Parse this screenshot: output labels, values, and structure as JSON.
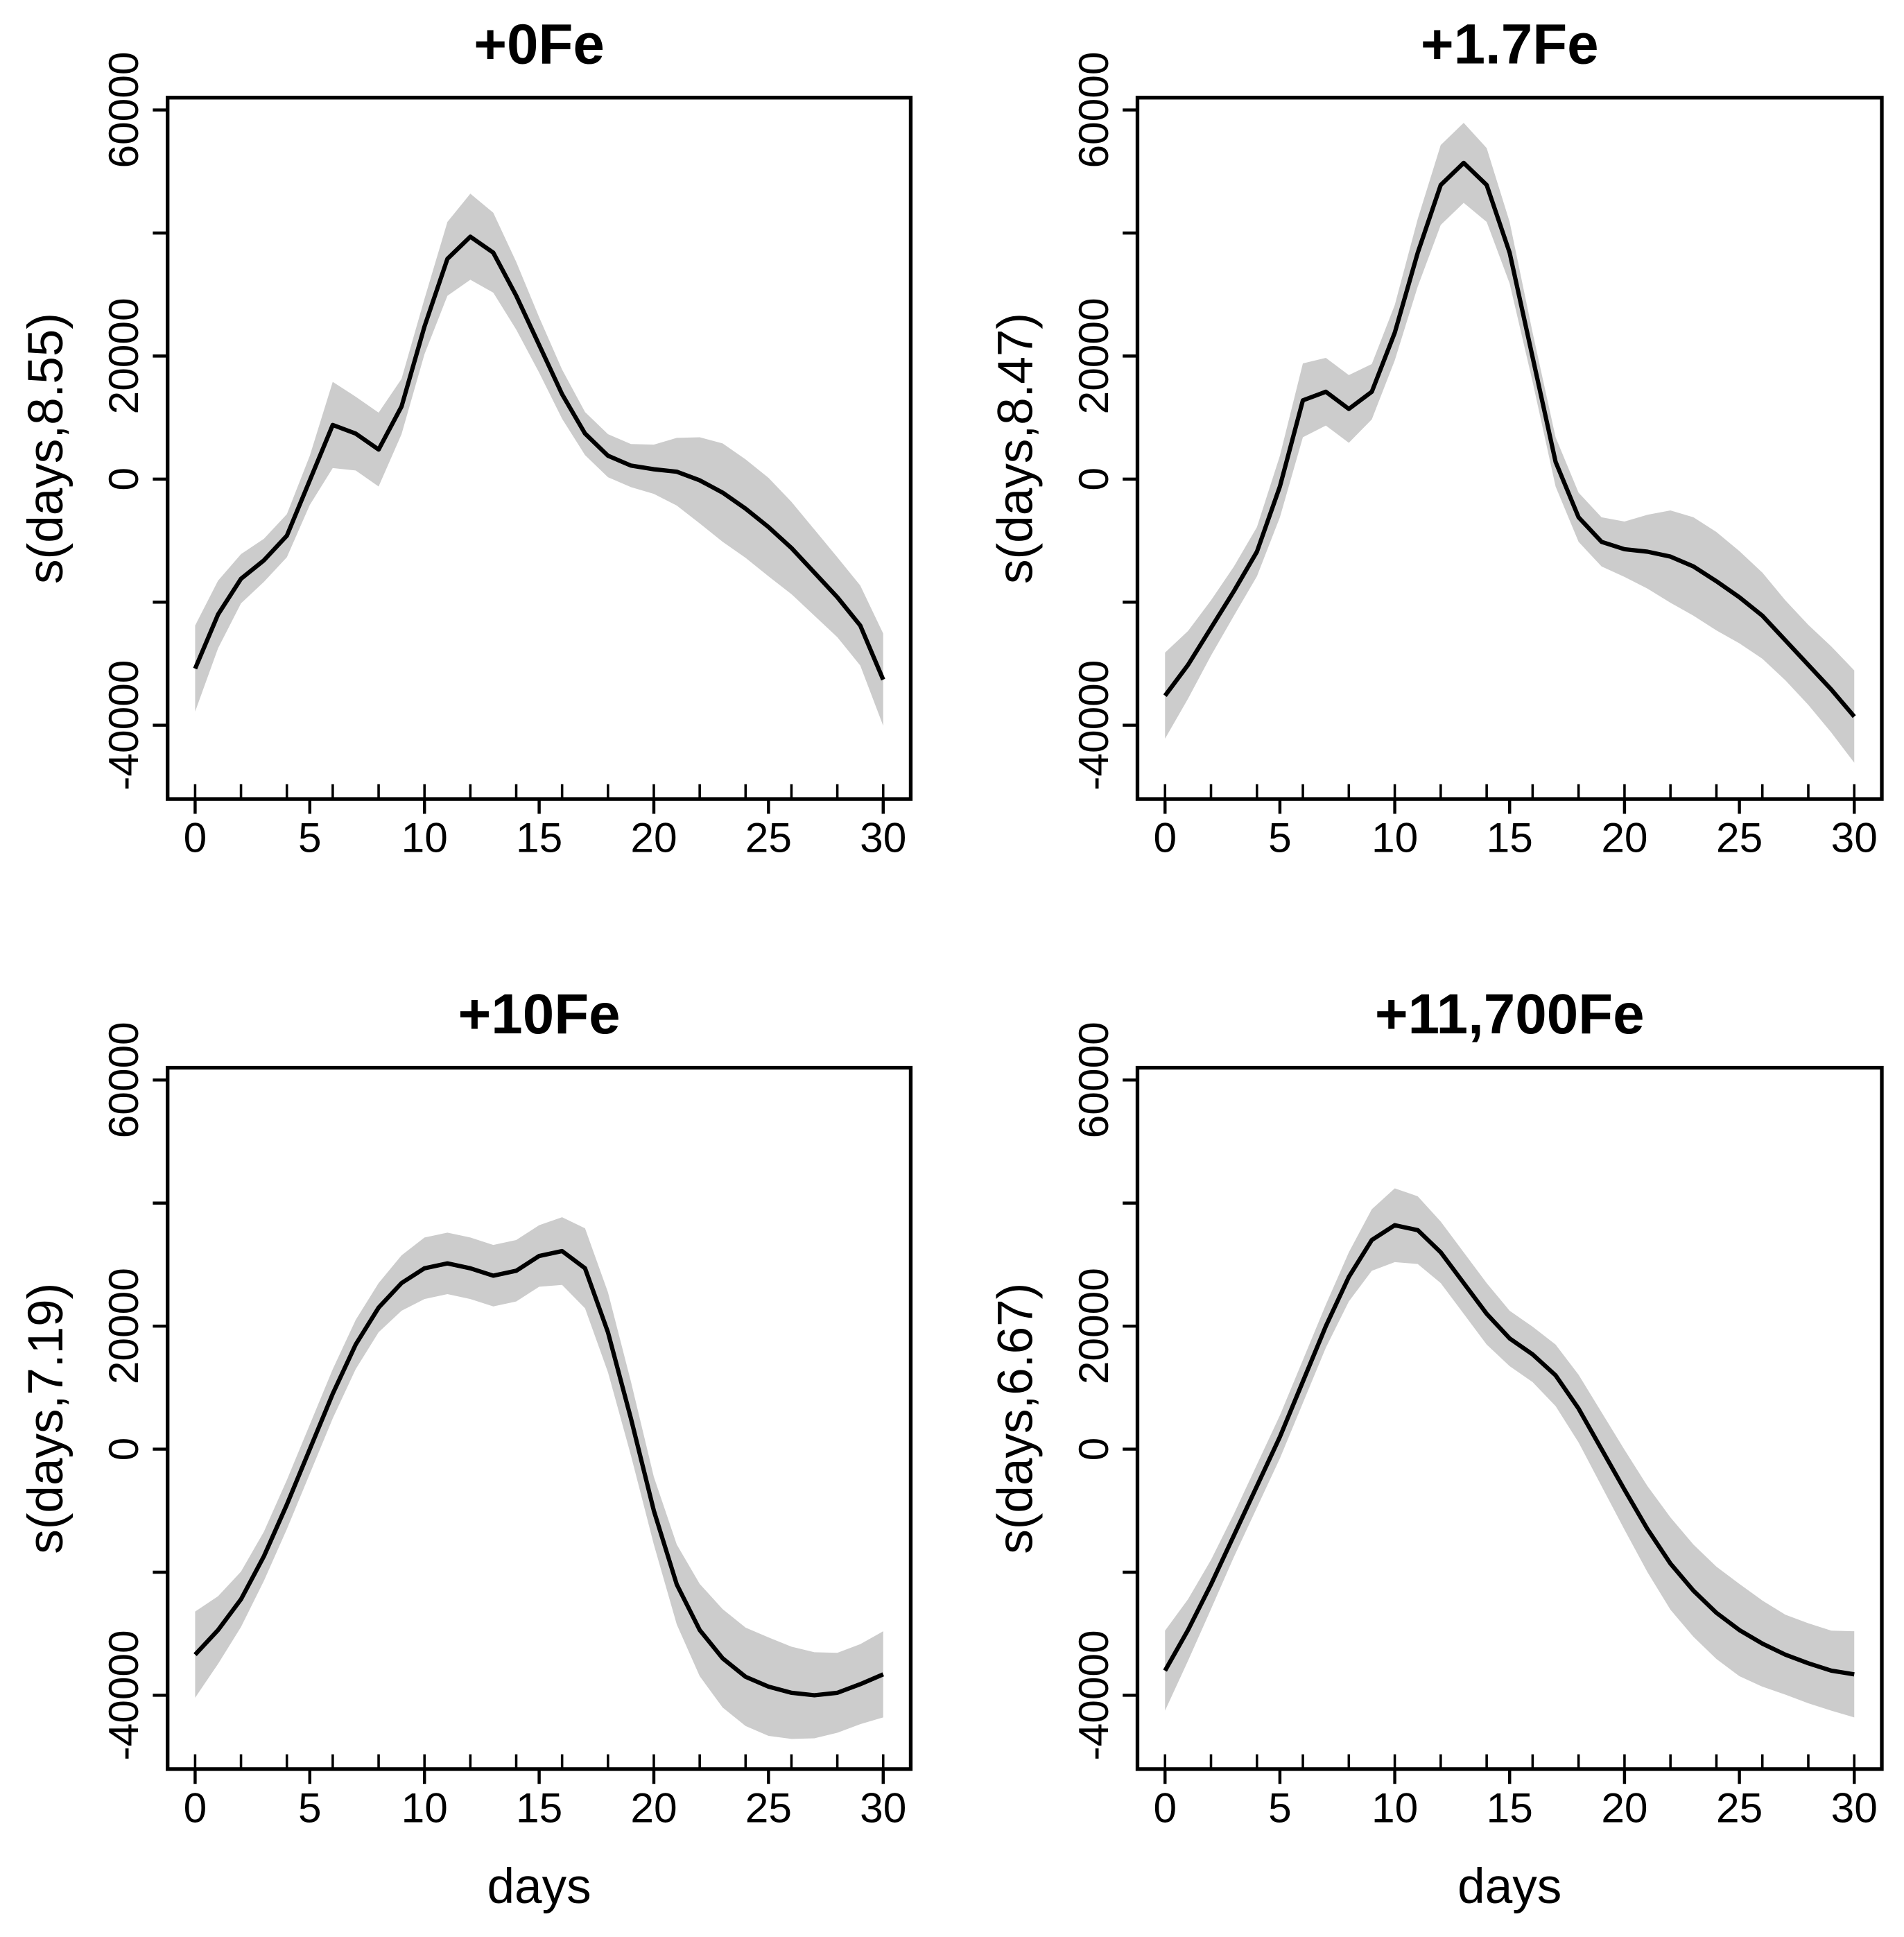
{
  "chart_data": [
    {
      "type": "line",
      "title": "+0Fe",
      "ylabel": "s(days,8.55)",
      "x": [
        0,
        1,
        2,
        3,
        4,
        5,
        6,
        7,
        8,
        9,
        10,
        11,
        12,
        13,
        14,
        15,
        16,
        17,
        18,
        19,
        20,
        21,
        22,
        23,
        24,
        25,
        26,
        27,
        28,
        29,
        30
      ],
      "values": [
        -30800,
        -22000,
        -16200,
        -13200,
        -9200,
        -200,
        8800,
        7400,
        4800,
        11800,
        24800,
        35800,
        39400,
        36800,
        29800,
        21800,
        13800,
        7400,
        3800,
        2200,
        1600,
        1200,
        -200,
        -2200,
        -4800,
        -7800,
        -11200,
        -15200,
        -19200,
        -23800,
        -32600
      ],
      "lower": [
        -37800,
        -27500,
        -20200,
        -16700,
        -12700,
        -4200,
        1800,
        1400,
        -1200,
        7300,
        20300,
        29800,
        32400,
        30300,
        24300,
        17300,
        9800,
        3900,
        300,
        -1300,
        -2400,
        -4300,
        -7200,
        -10200,
        -12800,
        -15800,
        -18700,
        -22200,
        -25700,
        -30300,
        -40100
      ],
      "upper": [
        -23800,
        -16500,
        -12200,
        -9700,
        -5700,
        3800,
        15800,
        13400,
        10800,
        16300,
        29300,
        41800,
        46400,
        43300,
        35300,
        26300,
        17800,
        10900,
        7300,
        5700,
        5600,
        6700,
        6800,
        5800,
        3200,
        200,
        -3700,
        -8200,
        -12700,
        -17300,
        -25100
      ],
      "rug": [
        0,
        2,
        4,
        6,
        8,
        10,
        12,
        14,
        16,
        18,
        20,
        22,
        24,
        26,
        28,
        30
      ],
      "color": "#000000",
      "band_color": "#cccccc",
      "xlim": [
        -1.2,
        31.2
      ],
      "ylim": [
        -52000,
        62000
      ],
      "xticks": [
        0,
        5,
        10,
        15,
        20,
        25,
        30
      ],
      "yticks": [
        -40000,
        {
          "value": -20000,
          "label": null
        },
        0,
        20000,
        {
          "value": 40000,
          "label": null
        },
        60000
      ]
    },
    {
      "type": "line",
      "title": "+1.7Fe",
      "ylabel": "s(days,8.47)",
      "x": [
        0,
        1,
        2,
        3,
        4,
        5,
        6,
        7,
        8,
        9,
        10,
        11,
        12,
        13,
        14,
        15,
        16,
        17,
        18,
        19,
        20,
        21,
        22,
        23,
        24,
        25,
        26,
        27,
        28,
        29,
        30
      ],
      "values": [
        -35200,
        -30200,
        -24200,
        -18200,
        -11800,
        -1200,
        12800,
        14200,
        11400,
        14200,
        23800,
        36800,
        47800,
        51400,
        47800,
        36800,
        19800,
        2800,
        -6200,
        -10200,
        -11400,
        -11800,
        -12600,
        -14200,
        -16600,
        -19200,
        -22200,
        -26200,
        -30200,
        -34200,
        -38600
      ],
      "lower": [
        -42200,
        -35700,
        -28700,
        -22200,
        -15800,
        -6200,
        6800,
        8700,
        5900,
        9700,
        19300,
        31300,
        41300,
        44900,
        41800,
        31800,
        15800,
        -1200,
        -10200,
        -14200,
        -15900,
        -17800,
        -20100,
        -22200,
        -24600,
        -26700,
        -29200,
        -32700,
        -36700,
        -41200,
        -46100
      ],
      "upper": [
        -28200,
        -24700,
        -19700,
        -14200,
        -7800,
        3800,
        18800,
        19700,
        16900,
        18700,
        28300,
        42300,
        54300,
        57900,
        53800,
        41800,
        23800,
        6800,
        -2200,
        -6200,
        -6900,
        -5800,
        -5100,
        -6200,
        -8600,
        -11700,
        -15200,
        -19700,
        -23700,
        -27200,
        -31100
      ],
      "rug": [
        0,
        2,
        4,
        6,
        8,
        10,
        12,
        14,
        16,
        18,
        20,
        22,
        24,
        26,
        28,
        30
      ],
      "color": "#000000",
      "band_color": "#cccccc",
      "xlim": [
        -1.2,
        31.2
      ],
      "ylim": [
        -52000,
        62000
      ],
      "xticks": [
        0,
        5,
        10,
        15,
        20,
        25,
        30
      ],
      "yticks": [
        -40000,
        {
          "value": -20000,
          "label": null
        },
        0,
        20000,
        {
          "value": 40000,
          "label": null
        },
        60000
      ]
    },
    {
      "type": "line",
      "title": "+10Fe",
      "ylabel": "s(days,7.19)",
      "xlabel": "days",
      "x": [
        0,
        1,
        2,
        3,
        4,
        5,
        6,
        7,
        8,
        9,
        10,
        11,
        12,
        13,
        14,
        15,
        16,
        17,
        18,
        19,
        20,
        21,
        22,
        23,
        24,
        25,
        26,
        27,
        28,
        29,
        30
      ],
      "values": [
        -33400,
        -29400,
        -24400,
        -17400,
        -9000,
        0,
        9000,
        17000,
        23000,
        27000,
        29400,
        30200,
        29400,
        28200,
        29000,
        31400,
        32200,
        29400,
        19000,
        5000,
        -10000,
        -22000,
        -29400,
        -34000,
        -37000,
        -38600,
        -39600,
        -40000,
        -39600,
        -38200,
        -36600
      ],
      "lower": [
        -40400,
        -34900,
        -28900,
        -21400,
        -13000,
        -4000,
        5000,
        13000,
        19000,
        22500,
        24400,
        25200,
        24400,
        23200,
        24000,
        26400,
        26700,
        22900,
        12500,
        -1000,
        -15500,
        -28500,
        -36900,
        -42000,
        -45000,
        -46600,
        -47100,
        -47000,
        -46100,
        -44700,
        -43600
      ],
      "upper": [
        -26400,
        -23900,
        -19900,
        -13400,
        -5000,
        4000,
        13000,
        21000,
        27000,
        31500,
        34400,
        35200,
        34400,
        33200,
        34000,
        36400,
        37700,
        35900,
        25500,
        11000,
        -4500,
        -15500,
        -21900,
        -26000,
        -29000,
        -30600,
        -32100,
        -33000,
        -33100,
        -31700,
        -29600
      ],
      "rug": [
        0,
        2,
        4,
        6,
        8,
        10,
        12,
        14,
        16,
        18,
        20,
        22,
        24,
        26,
        28,
        30
      ],
      "color": "#000000",
      "band_color": "#cccccc",
      "xlim": [
        -1.2,
        31.2
      ],
      "ylim": [
        -52000,
        62000
      ],
      "xticks": [
        0,
        5,
        10,
        15,
        20,
        25,
        30
      ],
      "yticks": [
        -40000,
        {
          "value": -20000,
          "label": null
        },
        0,
        20000,
        {
          "value": 40000,
          "label": null
        },
        60000
      ]
    },
    {
      "type": "line",
      "title": "+11,700Fe",
      "ylabel": "s(days,6.67)",
      "xlabel": "days",
      "x": [
        0,
        1,
        2,
        3,
        4,
        5,
        6,
        7,
        8,
        9,
        10,
        11,
        12,
        13,
        14,
        15,
        16,
        17,
        18,
        19,
        20,
        21,
        22,
        23,
        24,
        25,
        26,
        27,
        28,
        29,
        30
      ],
      "values": [
        -36000,
        -29400,
        -22000,
        -14000,
        -6000,
        2000,
        11000,
        20000,
        28000,
        34000,
        36400,
        35600,
        32000,
        27000,
        22000,
        18000,
        15400,
        12000,
        6600,
        0,
        -6600,
        -13000,
        -18600,
        -23000,
        -26600,
        -29400,
        -31600,
        -33400,
        -34800,
        -36000,
        -36600
      ],
      "lower": [
        -42500,
        -34400,
        -26000,
        -17500,
        -9500,
        -1500,
        7500,
        16500,
        24000,
        29000,
        30400,
        30100,
        27000,
        22000,
        17000,
        13500,
        10900,
        7000,
        1100,
        -6000,
        -13100,
        -20000,
        -26100,
        -30500,
        -34100,
        -36900,
        -38600,
        -39900,
        -41300,
        -42500,
        -43600
      ],
      "upper": [
        -29500,
        -24400,
        -18000,
        -10500,
        -2500,
        5500,
        14500,
        23500,
        32000,
        39000,
        42400,
        41100,
        37000,
        32000,
        27000,
        22500,
        19900,
        17000,
        12100,
        6000,
        -100,
        -6000,
        -11100,
        -15500,
        -19100,
        -21900,
        -24600,
        -26900,
        -28300,
        -29500,
        -29600
      ],
      "rug": [
        0,
        2,
        4,
        6,
        8,
        10,
        12,
        14,
        16,
        18,
        20,
        22,
        24,
        26,
        28,
        30
      ],
      "color": "#000000",
      "band_color": "#cccccc",
      "xlim": [
        -1.2,
        31.2
      ],
      "ylim": [
        -52000,
        62000
      ],
      "xticks": [
        0,
        5,
        10,
        15,
        20,
        25,
        30
      ],
      "yticks": [
        -40000,
        {
          "value": -20000,
          "label": null
        },
        0,
        20000,
        {
          "value": 40000,
          "label": null
        },
        60000
      ]
    }
  ]
}
